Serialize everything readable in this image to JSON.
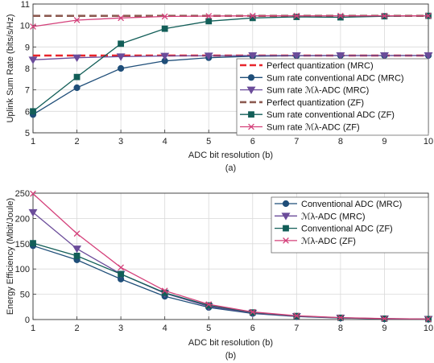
{
  "colors": {
    "perfect_mrc": "#e8262c",
    "conv_mrc": "#1f4e79",
    "mlambda_mrc": "#6b4c9a",
    "perfect_zf": "#8c5a50",
    "conv_zf": "#125e58",
    "mlambda_zf": "#d4407a"
  },
  "chart_data": [
    {
      "type": "line",
      "caption": "(a)",
      "xlabel": "ADC bit resolution (b)",
      "ylabel": "Uplink Sum Rate (bits/s/Hz)",
      "xlim": [
        1,
        10
      ],
      "ylim": [
        5,
        11
      ],
      "xticks": [
        "1",
        "2",
        "3",
        "4",
        "5",
        "6",
        "7",
        "8",
        "9",
        "10"
      ],
      "yticks": [
        "5",
        "6",
        "7",
        "8",
        "9",
        "10",
        "11"
      ],
      "grid": true,
      "legend_position": "right",
      "x": [
        1,
        2,
        3,
        4,
        5,
        6,
        7,
        8,
        9,
        10
      ],
      "series": [
        {
          "name": "Perfect quantization (MRC)",
          "color_key": "perfect_mrc",
          "style": "dashed",
          "marker": "none",
          "values": [
            8.6,
            8.6,
            8.6,
            8.6,
            8.6,
            8.6,
            8.6,
            8.6,
            8.6,
            8.6
          ]
        },
        {
          "name": "Sum rate conventional ADC (MRC)",
          "color_key": "conv_mrc",
          "style": "solid",
          "marker": "circle",
          "values": [
            5.85,
            7.1,
            8.0,
            8.35,
            8.5,
            8.57,
            8.59,
            8.6,
            8.6,
            8.6
          ]
        },
        {
          "name": "Sum rate ℳλ-ADC (MRC)",
          "color_key": "mlambda_mrc",
          "style": "solid",
          "marker": "triangle-down",
          "values": [
            8.4,
            8.5,
            8.55,
            8.58,
            8.59,
            8.6,
            8.6,
            8.6,
            8.6,
            8.6
          ]
        },
        {
          "name": "Perfect quantization (ZF)",
          "color_key": "perfect_zf",
          "style": "dashed",
          "marker": "none",
          "values": [
            10.45,
            10.45,
            10.45,
            10.45,
            10.45,
            10.45,
            10.45,
            10.45,
            10.45,
            10.45
          ]
        },
        {
          "name": "Sum rate conventional ADC (ZF)",
          "color_key": "conv_zf",
          "style": "solid",
          "marker": "square",
          "values": [
            6.0,
            7.6,
            9.15,
            9.85,
            10.2,
            10.35,
            10.4,
            10.38,
            10.43,
            10.45
          ]
        },
        {
          "name": "Sum rate ℳλ-ADC (ZF)",
          "color_key": "mlambda_zf",
          "style": "solid",
          "marker": "x",
          "values": [
            9.95,
            10.25,
            10.35,
            10.42,
            10.44,
            10.45,
            10.45,
            10.45,
            10.45,
            10.45
          ]
        }
      ]
    },
    {
      "type": "line",
      "caption": "(b)",
      "xlabel": "ADC bit resolution (b)",
      "ylabel": "Energy Efficiency (Mbit/Joule)",
      "xlim": [
        1,
        10
      ],
      "ylim": [
        0,
        250
      ],
      "xticks": [
        "1",
        "2",
        "3",
        "4",
        "5",
        "6",
        "7",
        "8",
        "9",
        "10"
      ],
      "yticks": [
        "0",
        "50",
        "100",
        "150",
        "200",
        "250"
      ],
      "grid": true,
      "legend_position": "top-right",
      "x": [
        1,
        2,
        3,
        4,
        5,
        6,
        7,
        8,
        9,
        10
      ],
      "series": [
        {
          "name": "Conventional ADC (MRC)",
          "color_key": "conv_mrc",
          "style": "solid",
          "marker": "circle",
          "values": [
            146,
            118,
            80,
            46,
            24,
            12,
            6,
            3,
            1.5,
            0.8
          ]
        },
        {
          "name": "ℳλ-ADC (MRC)",
          "color_key": "mlambda_mrc",
          "style": "solid",
          "marker": "triangle-down",
          "values": [
            212,
            140,
            90,
            52,
            26,
            13,
            6.5,
            3.2,
            1.6,
            0.8
          ]
        },
        {
          "name": "Conventional ADC (ZF)",
          "color_key": "conv_zf",
          "style": "solid",
          "marker": "square",
          "values": [
            151,
            126,
            90,
            53,
            28,
            14,
            7,
            3.5,
            1.8,
            0.9
          ]
        },
        {
          "name": "ℳλ-ADC (ZF)",
          "color_key": "mlambda_zf",
          "style": "solid",
          "marker": "x",
          "values": [
            249,
            170,
            103,
            57,
            30,
            15,
            7.5,
            3.8,
            1.9,
            1.0
          ]
        }
      ]
    }
  ]
}
